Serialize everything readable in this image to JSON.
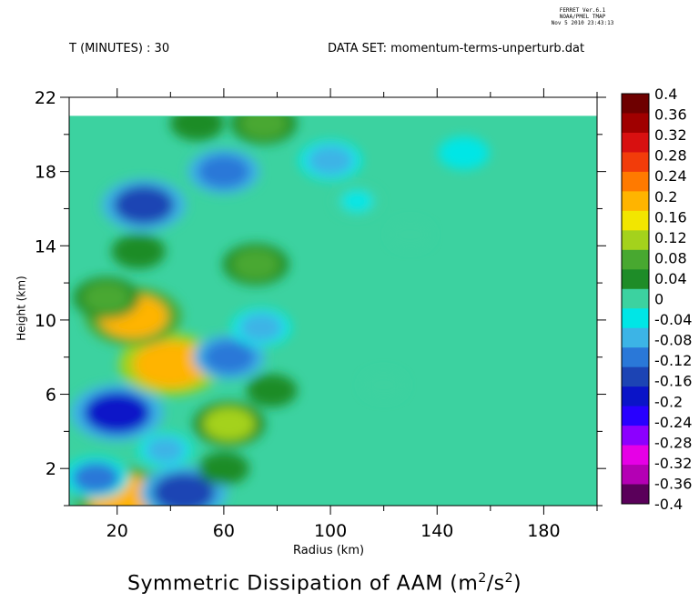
{
  "header": {
    "ferret_line1": "FERRET Ver.6.1",
    "ferret_line2": "NOAA/PMEL TMAP",
    "ferret_line3": "Nov 5 2010 23:43:13",
    "time_label": "T (MINUTES) : 30",
    "dataset_label": "DATA SET: momentum-terms-unperturb.dat"
  },
  "chart_data": {
    "type": "heatmap",
    "title": "Symmetric Dissipation of AAM (m²/s²)",
    "title_main": "Symmetric Dissipation of AAM (m",
    "title_sup1": "2",
    "title_mid": "/s",
    "title_sup2": "2",
    "title_end": ")",
    "xlabel": "Radius (km)",
    "ylabel": "Height (km)",
    "xlim": [
      2,
      200
    ],
    "ylim": [
      0,
      22
    ],
    "data_top": 21,
    "x_ticks": [
      "20",
      "60",
      "100",
      "140",
      "180"
    ],
    "y_ticks": [
      "2",
      "6",
      "10",
      "14",
      "18",
      "22"
    ],
    "colorbar_labels": [
      "0.4",
      "0.36",
      "0.32",
      "0.28",
      "0.24",
      "0.2",
      "0.16",
      "0.12",
      "0.08",
      "0.04",
      "0",
      "-0.04",
      "-0.08",
      "-0.12",
      "-0.16",
      "-0.2",
      "-0.24",
      "-0.28",
      "-0.32",
      "-0.36",
      "-0.4"
    ],
    "colorbar_colors": [
      "#6e0000",
      "#a00000",
      "#d81010",
      "#f23c0a",
      "#ff7a00",
      "#ffb400",
      "#f2e600",
      "#a4d21c",
      "#48a830",
      "#1e8c28",
      "#3cd2a0",
      "#00e6e6",
      "#3cb4e6",
      "#2a78d8",
      "#1c44b4",
      "#0a14c8",
      "#2800ff",
      "#8c00ff",
      "#e600e6",
      "#b400b4",
      "#5a005a"
    ],
    "background_value": 0,
    "features": [
      {
        "r": 22,
        "z": 0.5,
        "value": 0.2
      },
      {
        "r": 45,
        "z": 0.7,
        "value": -0.17
      },
      {
        "r": 12,
        "z": 1.5,
        "value": -0.1
      },
      {
        "r": 60,
        "z": 2.0,
        "value": 0.05
      },
      {
        "r": 20,
        "z": 5.0,
        "value": -0.19
      },
      {
        "r": 38,
        "z": 3.0,
        "value": -0.06
      },
      {
        "r": 40,
        "z": 7.6,
        "value": 0.22
      },
      {
        "r": 26,
        "z": 10.2,
        "value": 0.2
      },
      {
        "r": 16,
        "z": 11.2,
        "value": 0.1
      },
      {
        "r": 62,
        "z": 4.4,
        "value": 0.12
      },
      {
        "r": 78,
        "z": 6.2,
        "value": 0.05
      },
      {
        "r": 62,
        "z": 8.0,
        "value": -0.12
      },
      {
        "r": 74,
        "z": 9.6,
        "value": -0.08
      },
      {
        "r": 72,
        "z": 13.0,
        "value": 0.1
      },
      {
        "r": 28,
        "z": 13.7,
        "value": 0.06
      },
      {
        "r": 30,
        "z": 16.2,
        "value": -0.16
      },
      {
        "r": 60,
        "z": 18.0,
        "value": -0.12
      },
      {
        "r": 100,
        "z": 18.6,
        "value": -0.09
      },
      {
        "r": 150,
        "z": 19.0,
        "value": -0.05
      },
      {
        "r": 75,
        "z": 20.6,
        "value": 0.1
      },
      {
        "r": 50,
        "z": 20.6,
        "value": 0.06
      },
      {
        "r": 110,
        "z": 16.4,
        "value": -0.03
      },
      {
        "r": 120,
        "z": 6.5,
        "value": 0.02
      },
      {
        "r": 130,
        "z": 14.6,
        "value": 0.02
      }
    ]
  }
}
